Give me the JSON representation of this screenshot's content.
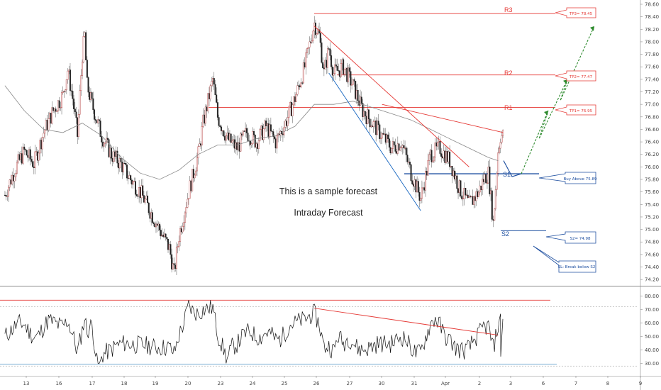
{
  "chart_data": [
    {
      "type": "candlestick",
      "title": "",
      "ylim": [
        74.1,
        78.6
      ],
      "y_ticks": [
        "74.20",
        "74.40",
        "74.60",
        "74.80",
        "75.00",
        "75.20",
        "75.40",
        "75.60",
        "75.80",
        "76.00",
        "76.20",
        "76.40",
        "76.60",
        "76.80",
        "77.00",
        "77.20",
        "77.40",
        "77.60",
        "77.80",
        "78.00",
        "78.20",
        "78.40",
        "78.60"
      ],
      "x_ticks": [
        "13",
        "16",
        "17",
        "18",
        "19",
        "20",
        "23",
        "24",
        "25",
        "26",
        "27",
        "30",
        "31",
        "Apr",
        "2",
        "3",
        "6",
        "7",
        "8",
        "9"
      ],
      "price_path": [
        [
          0,
          75.55
        ],
        [
          2,
          75.95
        ],
        [
          4,
          76.25
        ],
        [
          6,
          76.05
        ],
        [
          8,
          76.55
        ],
        [
          10,
          76.9
        ],
        [
          12,
          77.15
        ],
        [
          13,
          77.55
        ],
        [
          14,
          77.1
        ],
        [
          15,
          76.5
        ],
        [
          16,
          77.8
        ],
        [
          16.5,
          78.1
        ],
        [
          17,
          77.3
        ],
        [
          18,
          77.0
        ],
        [
          20,
          76.5
        ],
        [
          22,
          76.2
        ],
        [
          24,
          76.05
        ],
        [
          26,
          75.8
        ],
        [
          28,
          75.6
        ],
        [
          30,
          75.3
        ],
        [
          32,
          75.0
        ],
        [
          34,
          74.7
        ],
        [
          35,
          74.3
        ],
        [
          36,
          74.9
        ],
        [
          38,
          75.6
        ],
        [
          40,
          76.2
        ],
        [
          41,
          76.7
        ],
        [
          42,
          77.05
        ],
        [
          43,
          77.4
        ],
        [
          44,
          76.8
        ],
        [
          46,
          76.45
        ],
        [
          48,
          76.3
        ],
        [
          50,
          76.55
        ],
        [
          52,
          76.4
        ],
        [
          54,
          76.65
        ],
        [
          56,
          76.4
        ],
        [
          58,
          76.7
        ],
        [
          60,
          77.1
        ],
        [
          62,
          77.6
        ],
        [
          64,
          78.3
        ],
        [
          65,
          78.1
        ],
        [
          66,
          77.5
        ],
        [
          67,
          77.9
        ],
        [
          68,
          77.5
        ],
        [
          70,
          77.6
        ],
        [
          72,
          77.3
        ],
        [
          74,
          76.9
        ],
        [
          76,
          76.7
        ],
        [
          78,
          76.5
        ],
        [
          80,
          76.3
        ],
        [
          82,
          76.4
        ],
        [
          84,
          75.9
        ],
        [
          86,
          75.5
        ],
        [
          88,
          76.2
        ],
        [
          90,
          76.3
        ],
        [
          92,
          76.1
        ],
        [
          94,
          75.65
        ],
        [
          96,
          75.4
        ],
        [
          98,
          75.6
        ],
        [
          99,
          75.8
        ],
        [
          100,
          75.9
        ],
        [
          101,
          75.1
        ],
        [
          102,
          76.25
        ],
        [
          102.5,
          76.5
        ]
      ],
      "ma_path": [
        [
          0,
          77.3
        ],
        [
          4,
          76.9
        ],
        [
          8,
          76.6
        ],
        [
          12,
          76.55
        ],
        [
          16,
          76.7
        ],
        [
          20,
          76.5
        ],
        [
          24,
          76.15
        ],
        [
          28,
          75.9
        ],
        [
          32,
          75.8
        ],
        [
          36,
          75.95
        ],
        [
          40,
          76.2
        ],
        [
          44,
          76.35
        ],
        [
          48,
          76.35
        ],
        [
          52,
          76.45
        ],
        [
          56,
          76.5
        ],
        [
          60,
          76.65
        ],
        [
          64,
          77.0
        ],
        [
          68,
          77.0
        ],
        [
          72,
          77.05
        ],
        [
          76,
          76.95
        ],
        [
          80,
          76.85
        ],
        [
          84,
          76.75
        ],
        [
          88,
          76.6
        ],
        [
          92,
          76.45
        ],
        [
          96,
          76.3
        ],
        [
          100,
          76.15
        ],
        [
          102,
          76.1
        ]
      ],
      "levels": [
        {
          "name": "R3",
          "value": 78.45,
          "label": "R3",
          "color": "#e53935"
        },
        {
          "name": "R2",
          "value": 77.47,
          "label": "R2",
          "color": "#e53935"
        },
        {
          "name": "R1",
          "value": 76.95,
          "label": "R1",
          "color": "#e53935"
        },
        {
          "name": "S1",
          "value": 75.89,
          "label": "S1",
          "color": "#1e4fa0"
        },
        {
          "name": "S2",
          "value": 74.98,
          "label": "S2",
          "color": "#1e4fa0"
        }
      ],
      "trendlines": [
        {
          "color": "#e53935",
          "points": [
            [
              64,
              78.25
            ],
            [
              96,
              76.0
            ]
          ]
        },
        {
          "color": "#e53935",
          "points": [
            [
              78,
              77.0
            ],
            [
              103,
              76.55
            ]
          ]
        },
        {
          "color": "#1565c0",
          "points": [
            [
              67,
              77.5
            ],
            [
              86,
              75.3
            ]
          ]
        }
      ],
      "targets": [
        {
          "label": "TP3= 78.45",
          "value": 78.45,
          "color": "#e53935"
        },
        {
          "label": "TP2= 77.47",
          "value": 77.47,
          "color": "#e53935"
        },
        {
          "label": "TP1= 76.95",
          "value": 76.95,
          "color": "#e53935"
        },
        {
          "label": "Buy Above 75.89",
          "value": 75.89,
          "color": "#1e4fa0"
        },
        {
          "label": "S2= 74.98",
          "value": 74.98,
          "color": "#1e4fa0"
        },
        {
          "label": "SL: Break below S2",
          "value": 74.6,
          "color": "#1e4fa0"
        }
      ],
      "forecast_path": [
        [
          75.89
        ],
        [
          76.9
        ],
        [
          77.4
        ],
        [
          78.25
        ]
      ],
      "annotations": [
        "This is a sample forecast",
        "Intraday Forecast"
      ]
    },
    {
      "type": "line",
      "name": "oscillator",
      "ylim": [
        26,
        84
      ],
      "y_ticks": [
        "30.00",
        "40.00",
        "50.00",
        "60.00",
        "70.00",
        "80.00"
      ],
      "overbought": 72,
      "oversold": 28,
      "osc_levels": [
        {
          "value": 77
        },
        {
          "value": 29.5
        }
      ],
      "osc_trend": [
        [
          64,
          71
        ],
        [
          102,
          51
        ]
      ]
    }
  ],
  "texts": {
    "annotation1": "This is a sample forecast",
    "annotation2": "Intraday Forecast",
    "r1": "R1",
    "r2": "R2",
    "r3": "R3",
    "s1": "S1",
    "s2": "S2",
    "tp1": "TP1= 76.95",
    "tp2": "TP2= 77.47",
    "tp3": "TP3= 78.45",
    "buy": "Buy Above 75.89",
    "s2box": "S2= 74.98",
    "sl": "SL: Break below S2"
  }
}
